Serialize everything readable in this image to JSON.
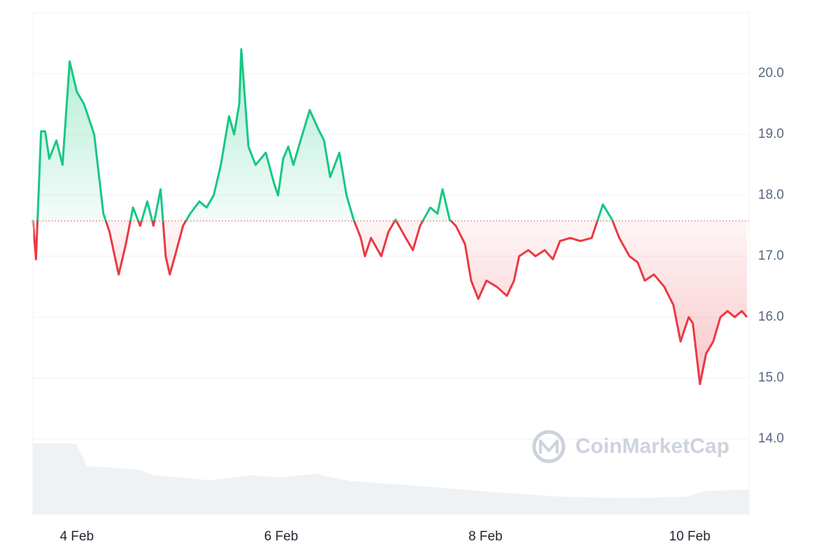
{
  "chart_data": {
    "type": "line",
    "watermark": "CoinMarketCap",
    "baseline": 17.58,
    "color_up": "#16c784",
    "color_down": "#ea3943",
    "xlim": [
      3.57,
      10.58
    ],
    "xticks": [
      {
        "value": 4,
        "label": "4 Feb"
      },
      {
        "value": 6,
        "label": "6 Feb"
      },
      {
        "value": 8,
        "label": "8 Feb"
      },
      {
        "value": 10,
        "label": "10 Feb"
      }
    ],
    "ylim": [
      12.76,
      21.0
    ],
    "yticks": [
      {
        "value": 14,
        "label": "14.0"
      },
      {
        "value": 15,
        "label": "15.0"
      },
      {
        "value": 16,
        "label": "16.0"
      },
      {
        "value": 17,
        "label": "17.0"
      },
      {
        "value": 18,
        "label": "18.0"
      },
      {
        "value": 19,
        "label": "19.0"
      },
      {
        "value": 20,
        "label": "20.0"
      }
    ],
    "grid": true,
    "x": [
      3.57,
      3.6,
      3.65,
      3.69,
      3.73,
      3.8,
      3.86,
      3.93,
      4.0,
      4.07,
      4.17,
      4.26,
      4.32,
      4.41,
      4.48,
      4.55,
      4.62,
      4.69,
      4.75,
      4.82,
      4.87,
      4.91,
      4.96,
      5.04,
      5.11,
      5.2,
      5.27,
      5.34,
      5.41,
      5.49,
      5.54,
      5.59,
      5.61,
      5.68,
      5.75,
      5.85,
      5.93,
      5.97,
      6.02,
      6.07,
      6.12,
      6.19,
      6.28,
      6.36,
      6.42,
      6.48,
      6.57,
      6.64,
      6.71,
      6.78,
      6.82,
      6.88,
      6.98,
      7.05,
      7.12,
      7.22,
      7.29,
      7.36,
      7.46,
      7.53,
      7.58,
      7.65,
      7.71,
      7.8,
      7.86,
      7.93,
      8.01,
      8.11,
      8.21,
      8.28,
      8.33,
      8.42,
      8.49,
      8.58,
      8.66,
      8.73,
      8.83,
      8.93,
      9.04,
      9.1,
      9.15,
      9.24,
      9.31,
      9.41,
      9.49,
      9.56,
      9.65,
      9.75,
      9.84,
      9.91,
      9.99,
      10.03,
      10.1,
      10.16,
      10.23,
      10.3,
      10.37,
      10.44,
      10.51,
      10.56
    ],
    "values": [
      17.6,
      16.95,
      19.05,
      19.05,
      18.6,
      18.9,
      18.5,
      20.2,
      19.7,
      19.5,
      19.0,
      17.7,
      17.4,
      16.7,
      17.2,
      17.8,
      17.5,
      17.9,
      17.5,
      18.1,
      17.0,
      16.7,
      17.0,
      17.5,
      17.7,
      17.9,
      17.8,
      18.0,
      18.5,
      19.3,
      19.0,
      19.5,
      20.4,
      18.8,
      18.5,
      18.7,
      18.2,
      18.0,
      18.6,
      18.8,
      18.5,
      18.9,
      19.4,
      19.1,
      18.9,
      18.3,
      18.7,
      18.0,
      17.6,
      17.3,
      17.0,
      17.3,
      17.0,
      17.4,
      17.6,
      17.3,
      17.1,
      17.5,
      17.8,
      17.7,
      18.1,
      17.6,
      17.5,
      17.2,
      16.6,
      16.3,
      16.6,
      16.5,
      16.35,
      16.6,
      17.0,
      17.1,
      17.0,
      17.1,
      16.95,
      17.25,
      17.3,
      17.25,
      17.3,
      17.6,
      17.85,
      17.6,
      17.3,
      17.0,
      16.9,
      16.6,
      16.7,
      16.5,
      16.2,
      15.6,
      16.0,
      15.9,
      14.9,
      15.4,
      15.6,
      16.0,
      16.1,
      16.0,
      16.1,
      16.0
    ],
    "volume": {
      "color": "#eff2f5",
      "ylim": [
        0,
        100
      ],
      "x": [
        3.57,
        3.93,
        4.0,
        4.1,
        4.62,
        4.75,
        5.3,
        5.71,
        5.99,
        6.33,
        6.67,
        7.36,
        8.04,
        8.73,
        9.41,
        9.96,
        10.16,
        10.58
      ],
      "values": [
        100,
        100,
        98,
        68,
        63,
        55,
        48,
        55,
        52,
        57,
        47,
        40,
        32,
        25,
        23,
        25,
        33,
        35
      ]
    }
  }
}
